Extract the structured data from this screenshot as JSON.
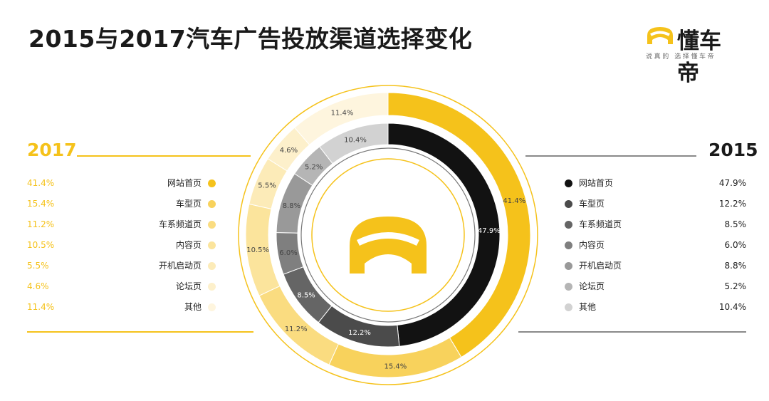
{
  "title": "2015与2017汽车广告投放渠道选择变化",
  "logo": {
    "name": "懂车帝",
    "slogan": "说真的 选择懂车帝",
    "icon": "car-front-icon",
    "color": "#F5C21B"
  },
  "bottom_caption": "",
  "chart_data": [
    {
      "type": "pie",
      "variant": "outer-ring",
      "title": "2017",
      "categories": [
        "网站首页",
        "车型页",
        "车系频道页",
        "内容页",
        "开机启动页",
        "论坛页",
        "其他"
      ],
      "values": [
        41.4,
        15.4,
        11.2,
        10.5,
        5.5,
        4.6,
        11.4
      ],
      "value_labels": [
        "41.4%",
        "15.4%",
        "11.2%",
        "10.5%",
        "5.5%",
        "4.6%",
        "11.4%"
      ],
      "colors": [
        "#F5C21B",
        "#F8D25C",
        "#FADC80",
        "#FBE49C",
        "#FCEBB8",
        "#FDF0CB",
        "#FEF5DE"
      ],
      "legend_position": "left"
    },
    {
      "type": "pie",
      "variant": "inner-ring",
      "title": "2015",
      "categories": [
        "网站首页",
        "车型页",
        "车系频道页",
        "内容页",
        "开机启动页",
        "论坛页",
        "其他"
      ],
      "values": [
        47.9,
        12.2,
        8.5,
        6.0,
        8.8,
        5.2,
        10.4
      ],
      "value_labels": [
        "47.9%",
        "12.2%",
        "8.5%",
        "6.0%",
        "8.8%",
        "5.2%",
        "10.4%"
      ],
      "colors": [
        "#121212",
        "#4b4b4b",
        "#656565",
        "#7f7f7f",
        "#999999",
        "#b5b5b5",
        "#d2d2d2"
      ],
      "legend_position": "right"
    }
  ]
}
